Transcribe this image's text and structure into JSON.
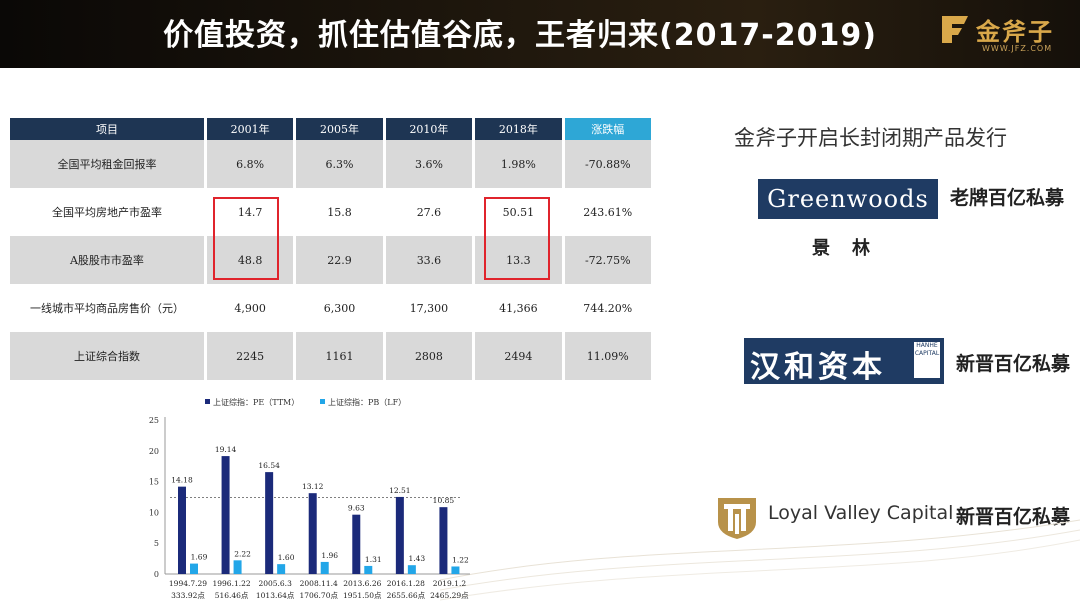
{
  "header": {
    "title": "价值投资，抓住估值谷底，王者归来(2017-2019)"
  },
  "logo": {
    "name": "金斧子",
    "url": "WWW.JFZ.COM",
    "mark": "F"
  },
  "table": {
    "headers": [
      "项目",
      "2001年",
      "2005年",
      "2010年",
      "2018年",
      "涨跌幅"
    ],
    "rows": [
      [
        "全国平均租金回报率",
        "6.8%",
        "6.3%",
        "3.6%",
        "1.98%",
        "-70.88%"
      ],
      [
        "全国平均房地产市盈率",
        "14.7",
        "15.8",
        "27.6",
        "50.51",
        "243.61%"
      ],
      [
        "A股股市市盈率",
        "48.8",
        "22.9",
        "33.6",
        "13.3",
        "-72.75%"
      ],
      [
        "一线城市平均商品房售价（元）",
        "4,900",
        "6,300",
        "17,300",
        "41,366",
        "744.20%"
      ],
      [
        "上证综合指数",
        "2245",
        "1161",
        "2808",
        "2494",
        "11.09%"
      ]
    ]
  },
  "right": {
    "title": "金斧子开启长封闭期产品发行",
    "funds": [
      {
        "logo_text": "Greenwoods",
        "logo_cn": "景林",
        "label": "老牌百亿私募"
      },
      {
        "logo_text": "汉和资本",
        "seal": "HANHE CAPITAL",
        "label": "新晋百亿私募"
      },
      {
        "logo_text": "Loyal Valley Capital",
        "label": "新晋百亿私募"
      }
    ]
  },
  "chart_data": {
    "type": "bar",
    "title": "",
    "categories": [
      "1994.7.29",
      "1996.1.22",
      "2005.6.3",
      "2008.11.4",
      "2013.6.26",
      "2016.1.28",
      "2019.1.2"
    ],
    "category_sublabels": [
      "333.92点",
      "516.46点",
      "1013.64点",
      "1706.70点",
      "1951.50点",
      "2655.66点",
      "2465.29点"
    ],
    "series": [
      {
        "name": "上证综指：PE（TTM）",
        "values": [
          14.18,
          19.14,
          16.54,
          13.12,
          9.63,
          12.51,
          10.85
        ],
        "color": "#1b2a7a"
      },
      {
        "name": "上证综指：PB（LF）",
        "values": [
          1.69,
          2.22,
          1.6,
          1.96,
          1.31,
          1.43,
          1.22
        ],
        "color": "#22a6e8"
      }
    ],
    "yticks": [
      "0",
      "5",
      "10",
      "15",
      "20",
      "25"
    ],
    "ylim": [
      0,
      25
    ],
    "reference_line": 12.4,
    "legend": "top",
    "grid": false
  }
}
